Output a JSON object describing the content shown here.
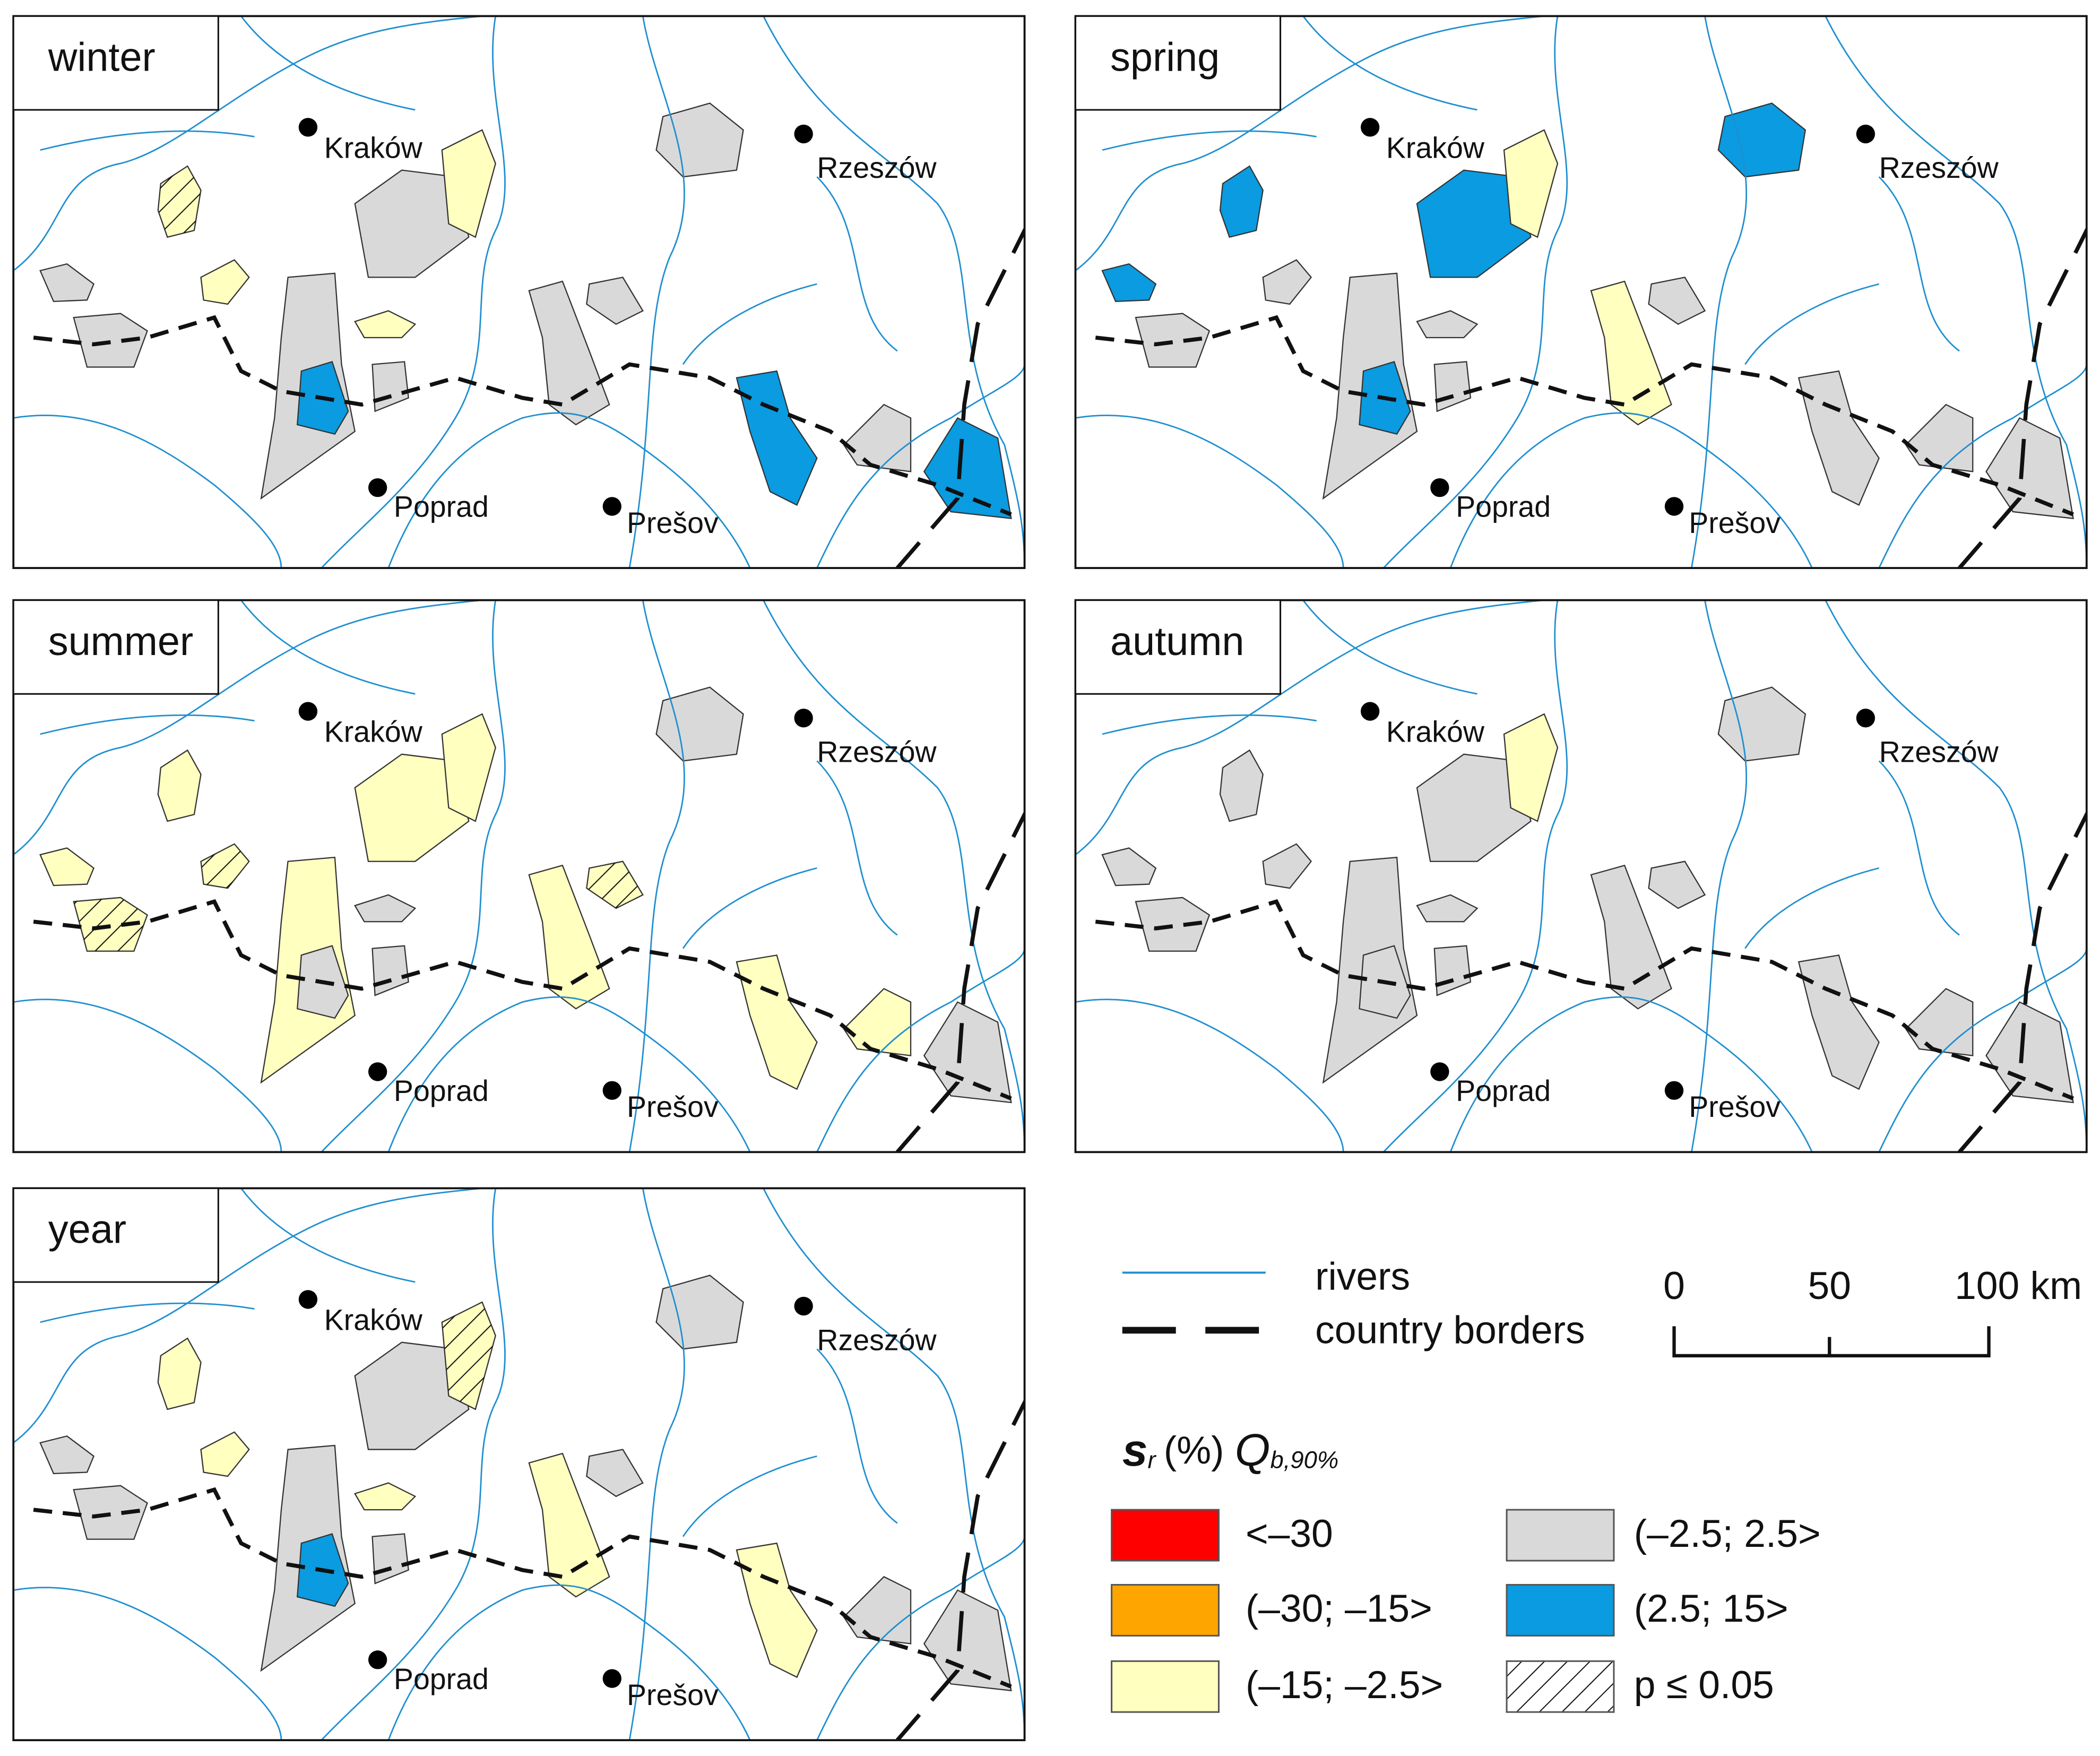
{
  "panels": [
    {
      "title": "winter"
    },
    {
      "title": "spring"
    },
    {
      "title": "summer"
    },
    {
      "title": "autumn"
    },
    {
      "title": "year"
    }
  ],
  "cities": [
    "Kraków",
    "Rzeszów",
    "Poprad",
    "Prešov"
  ],
  "legend": {
    "rivers": "rivers",
    "borders": "country borders",
    "title": {
      "s": "s",
      "r": "r",
      "unit": "(%)",
      "q": "Q",
      "sub": "b,90%"
    },
    "classes": [
      {
        "label": "<–30",
        "color": "#ff0000"
      },
      {
        "label": "(–30; –15>",
        "color": "#ffa500"
      },
      {
        "label": "(–15; –2.5>",
        "color": "#ffffc0"
      },
      {
        "label": "(–2.5; 2.5>",
        "color": "#d9d9d9"
      },
      {
        "label": "(2.5; 15>",
        "color": "#0a9be0"
      },
      {
        "label": "p ≤ 0.05"
      }
    ]
  },
  "scale": {
    "labels": [
      "0",
      "50",
      "100 km"
    ]
  }
}
